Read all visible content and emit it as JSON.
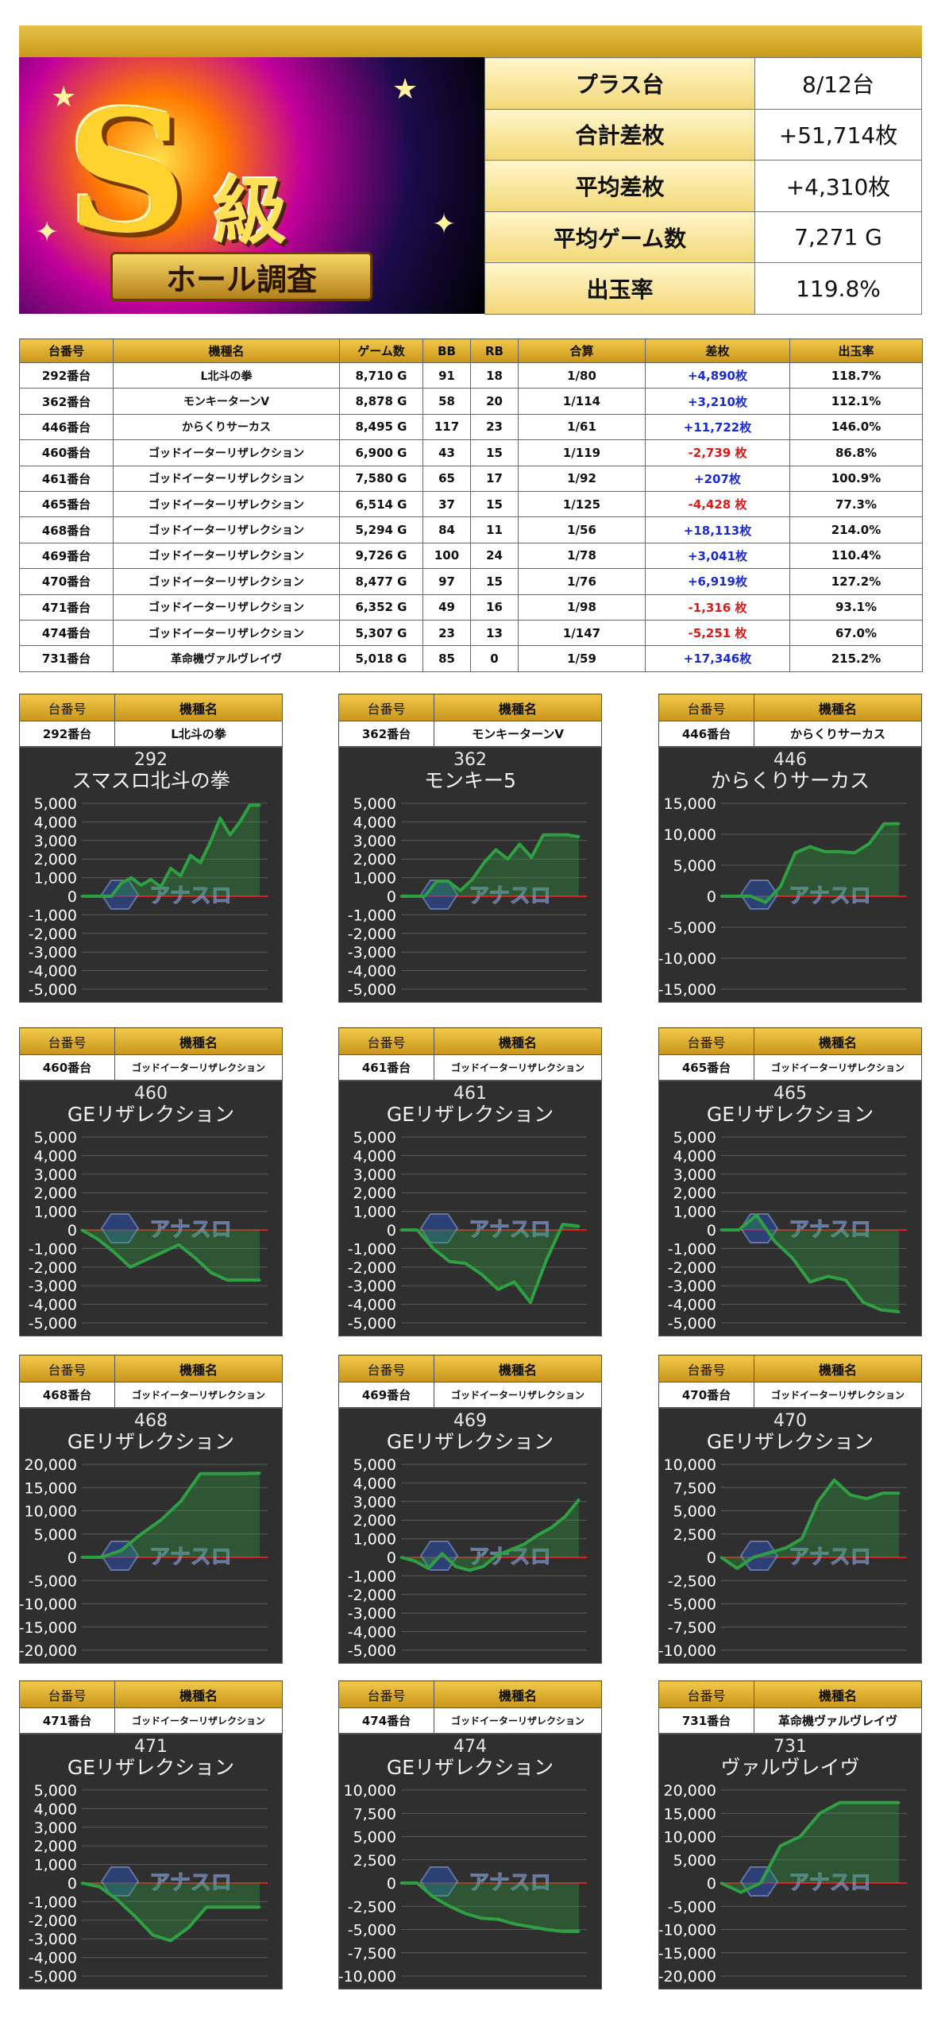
{
  "summary": [
    {
      "label": "プラス台",
      "value": "8/12台"
    },
    {
      "label": "合計差枚",
      "value": "+51,714枚"
    },
    {
      "label": "平均差枚",
      "value": "+4,310枚"
    },
    {
      "label": "平均ゲーム数",
      "value": "7,271 G"
    },
    {
      "label": "出玉率",
      "value": "119.8%"
    }
  ],
  "banner": {
    "big": "S",
    "kyu": "級",
    "ribbon": "ホール調査"
  },
  "table": {
    "headers": [
      "台番号",
      "機種名",
      "ゲーム数",
      "BB",
      "RB",
      "合算",
      "差枚",
      "出玉率"
    ],
    "rows": [
      [
        "292番台",
        "L北斗の拳",
        "8,710 G",
        "91",
        "18",
        "1/80",
        "+4,890枚",
        "118.7%"
      ],
      [
        "362番台",
        "モンキーターンV",
        "8,878 G",
        "58",
        "20",
        "1/114",
        "+3,210枚",
        "112.1%"
      ],
      [
        "446番台",
        "からくりサーカス",
        "8,495 G",
        "117",
        "23",
        "1/61",
        "+11,722枚",
        "146.0%"
      ],
      [
        "460番台",
        "ゴッドイーターリザレクション",
        "6,900 G",
        "43",
        "15",
        "1/119",
        "-2,739 枚",
        "86.8%"
      ],
      [
        "461番台",
        "ゴッドイーターリザレクション",
        "7,580 G",
        "65",
        "17",
        "1/92",
        "+207枚",
        "100.9%"
      ],
      [
        "465番台",
        "ゴッドイーターリザレクション",
        "6,514 G",
        "37",
        "15",
        "1/125",
        "-4,428 枚",
        "77.3%"
      ],
      [
        "468番台",
        "ゴッドイーターリザレクション",
        "5,294 G",
        "84",
        "11",
        "1/56",
        "+18,113枚",
        "214.0%"
      ],
      [
        "469番台",
        "ゴッドイーターリザレクション",
        "9,726 G",
        "100",
        "24",
        "1/78",
        "+3,041枚",
        "110.4%"
      ],
      [
        "470番台",
        "ゴッドイーターリザレクション",
        "8,477 G",
        "97",
        "15",
        "1/76",
        "+6,919枚",
        "127.2%"
      ],
      [
        "471番台",
        "ゴッドイーターリザレクション",
        "6,352 G",
        "49",
        "16",
        "1/98",
        "-1,316 枚",
        "93.1%"
      ],
      [
        "474番台",
        "ゴッドイーターリザレクション",
        "5,307 G",
        "23",
        "13",
        "1/147",
        "-5,251 枚",
        "67.0%"
      ],
      [
        "731番台",
        "革命機ヴァルヴレイヴ",
        "5,018 G",
        "85",
        "0",
        "1/59",
        "+17,346枚",
        "215.2%"
      ]
    ]
  },
  "card_header": {
    "machine_no": "台番号",
    "machine_name": "機種名"
  },
  "watermark": "アナスロ",
  "colors": {
    "positive": "#1a2bd6",
    "negative": "#e01818",
    "line": "#2ea043",
    "gold": "#e2b52e"
  },
  "chart_data": [
    {
      "type": "line",
      "no": "292番台",
      "name": "L北斗の拳",
      "title_num": "292",
      "title": "スマスロ北斗の拳",
      "ylim": [
        -5000,
        5000
      ],
      "yticks": [
        5000,
        4000,
        3000,
        2000,
        1000,
        0,
        -1000,
        -2000,
        -3000,
        -4000,
        -5000
      ],
      "values": [
        0,
        0,
        0,
        0,
        700,
        1000,
        600,
        900,
        500,
        1500,
        1100,
        2200,
        1800,
        2900,
        4200,
        3300,
        4000,
        4900,
        4900
      ]
    },
    {
      "type": "line",
      "no": "362番台",
      "name": "モンキーターンV",
      "title_num": "362",
      "title": "モンキー5",
      "ylim": [
        -5000,
        5000
      ],
      "yticks": [
        5000,
        4000,
        3000,
        2000,
        1000,
        0,
        -1000,
        -2000,
        -3000,
        -4000,
        -5000
      ],
      "values": [
        0,
        0,
        0,
        800,
        800,
        300,
        900,
        1800,
        2500,
        2000,
        2800,
        2100,
        3300,
        3300,
        3300,
        3200
      ]
    },
    {
      "type": "line",
      "no": "446番台",
      "name": "からくりサーカス",
      "title_num": "446",
      "title": "からくりサーカス",
      "ylim": [
        -15000,
        15000
      ],
      "yticks": [
        15000,
        10000,
        5000,
        0,
        -5000,
        -10000,
        -15000
      ],
      "values": [
        0,
        0,
        0,
        -1000,
        1500,
        7000,
        8000,
        7200,
        7200,
        7000,
        8500,
        11700,
        11700
      ]
    },
    {
      "type": "line",
      "no": "460番台",
      "name": "ゴッドイーターリザレクション",
      "title_num": "460",
      "title": "GEリザレクション",
      "ylim": [
        -5000,
        5000
      ],
      "yticks": [
        5000,
        4000,
        3000,
        2000,
        1000,
        0,
        -1000,
        -2000,
        -3000,
        -4000,
        -5000
      ],
      "values": [
        0,
        -500,
        -1200,
        -2000,
        -1600,
        -1200,
        -800,
        -1500,
        -2300,
        -2700,
        -2700,
        -2700
      ]
    },
    {
      "type": "line",
      "no": "461番台",
      "name": "ゴッドイーターリザレクション",
      "title_num": "461",
      "title": "GEリザレクション",
      "ylim": [
        -5000,
        5000
      ],
      "yticks": [
        5000,
        4000,
        3000,
        2000,
        1000,
        0,
        -1000,
        -2000,
        -3000,
        -4000,
        -5000
      ],
      "values": [
        0,
        0,
        -1000,
        -1700,
        -1800,
        -2400,
        -3200,
        -2800,
        -3900,
        -1600,
        300,
        200
      ]
    },
    {
      "type": "line",
      "no": "465番台",
      "name": "ゴッドイーターリザレクション",
      "title_num": "465",
      "title": "GEリザレクション",
      "ylim": [
        -5000,
        5000
      ],
      "yticks": [
        5000,
        4000,
        3000,
        2000,
        1000,
        0,
        -1000,
        -2000,
        -3000,
        -4000,
        -5000
      ],
      "values": [
        0,
        0,
        800,
        -600,
        -1500,
        -2800,
        -2500,
        -2700,
        -3900,
        -4300,
        -4400
      ]
    },
    {
      "type": "line",
      "no": "468番台",
      "name": "ゴッドイーターリザレクション",
      "title_num": "468",
      "title": "GEリザレクション",
      "ylim": [
        -20000,
        20000
      ],
      "yticks": [
        20000,
        15000,
        10000,
        5000,
        0,
        -5000,
        -10000,
        -15000,
        -20000
      ],
      "values": [
        0,
        0,
        1500,
        5000,
        8000,
        12000,
        18000,
        18000,
        18000,
        18100
      ]
    },
    {
      "type": "line",
      "no": "469番台",
      "name": "ゴッドイーターリザレクション",
      "title_num": "469",
      "title": "GEリザレクション",
      "ylim": [
        -5000,
        5000
      ],
      "yticks": [
        5000,
        4000,
        3000,
        2000,
        1000,
        0,
        -1000,
        -2000,
        -3000,
        -4000,
        -5000
      ],
      "values": [
        0,
        -200,
        -600,
        200,
        -500,
        -700,
        -500,
        100,
        400,
        700,
        1200,
        1600,
        2200,
        3100
      ]
    },
    {
      "type": "line",
      "no": "470番台",
      "name": "ゴッドイーターリザレクション",
      "title_num": "470",
      "title": "GEリザレクション",
      "ylim": [
        -10000,
        10000
      ],
      "yticks": [
        10000,
        7500,
        5000,
        2500,
        0,
        -2500,
        -5000,
        -7500,
        -10000
      ],
      "values": [
        0,
        -1200,
        0,
        500,
        1000,
        2000,
        6000,
        8300,
        6700,
        6300,
        6900,
        6900
      ]
    },
    {
      "type": "line",
      "no": "471番台",
      "name": "ゴッドイーターリザレクション",
      "title_num": "471",
      "title": "GEリザレクション",
      "ylim": [
        -5000,
        5000
      ],
      "yticks": [
        5000,
        4000,
        3000,
        2000,
        1000,
        0,
        -1000,
        -2000,
        -3000,
        -4000,
        -5000
      ],
      "values": [
        0,
        -200,
        -900,
        -1800,
        -2800,
        -3100,
        -2400,
        -1300,
        -1300,
        -1300,
        -1300
      ]
    },
    {
      "type": "line",
      "no": "474番台",
      "name": "ゴッドイーターリザレクション",
      "title_num": "474",
      "title": "GEリザレクション",
      "ylim": [
        -10000,
        10000
      ],
      "yticks": [
        10000,
        7500,
        5000,
        2500,
        0,
        -2500,
        -5000,
        -7500,
        -10000
      ],
      "values": [
        0,
        0,
        -1500,
        -2500,
        -3300,
        -3800,
        -3900,
        -4400,
        -4700,
        -5000,
        -5200,
        -5200
      ]
    },
    {
      "type": "line",
      "no": "731番台",
      "name": "革命機ヴァルヴレイヴ",
      "title_num": "731",
      "title": "ヴァルヴレイヴ",
      "ylim": [
        -20000,
        20000
      ],
      "yticks": [
        20000,
        15000,
        10000,
        5000,
        0,
        -5000,
        -10000,
        -15000,
        -20000
      ],
      "values": [
        0,
        -2000,
        0,
        8000,
        10000,
        15000,
        17300,
        17300,
        17300,
        17300
      ]
    }
  ]
}
